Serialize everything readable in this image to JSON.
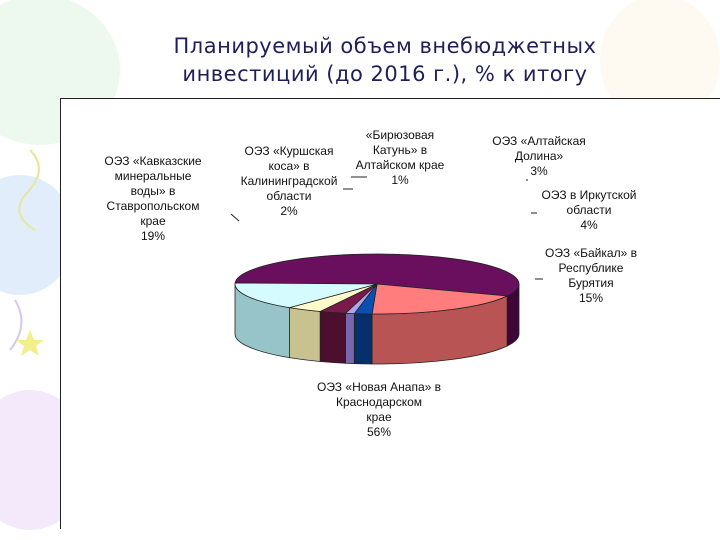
{
  "slide": {
    "title_line1": "Планируемый объем внебюджетных",
    "title_line2": "инвестиций (до 2016 г.), % к итогу"
  },
  "chart_data": {
    "type": "pie",
    "title": "Планируемый объем внебюджетных инвестиций (до 2016 г.), % к итогу",
    "slices": [
      {
        "lines": [
          "ОЭЗ «Новая Анапа» в",
          "Краснодарском",
          "крае",
          "56%"
        ],
        "value": 56,
        "color": "#6a0f5e",
        "side": "#3e0636"
      },
      {
        "lines": [
          "ОЭЗ «Кавказские",
          "минеральные",
          "воды» в",
          "Ставропольском",
          "крае",
          "19%"
        ],
        "value": 19,
        "color": "#ff7d7d",
        "side": "#b85454"
      },
      {
        "lines": [
          "ОЭЗ «Куршская",
          "коса» в",
          "Калининградской",
          "области",
          "2%"
        ],
        "value": 2,
        "color": "#0b4fb0",
        "side": "#06306c"
      },
      {
        "lines": [
          "«Бирюзовая",
          "Катунь» в",
          "Алтайском крае",
          "1%"
        ],
        "value": 1,
        "color": "#b0a3ee",
        "side": "#7667b0"
      },
      {
        "lines": [
          "ОЭЗ «Алтайская",
          "Долина»",
          "3%"
        ],
        "value": 3,
        "color": "#7a1a4a",
        "side": "#4d0f2e"
      },
      {
        "lines": [
          "ОЭЗ в Иркутской",
          "области",
          "4%"
        ],
        "value": 4,
        "color": "#fffacc",
        "side": "#c7c290"
      },
      {
        "lines": [
          "ОЭЗ «Байкал» в",
          "Республике",
          "Бурятия",
          "15%"
        ],
        "value": 15,
        "color": "#d6fbff",
        "side": "#97c4c9"
      }
    ]
  }
}
